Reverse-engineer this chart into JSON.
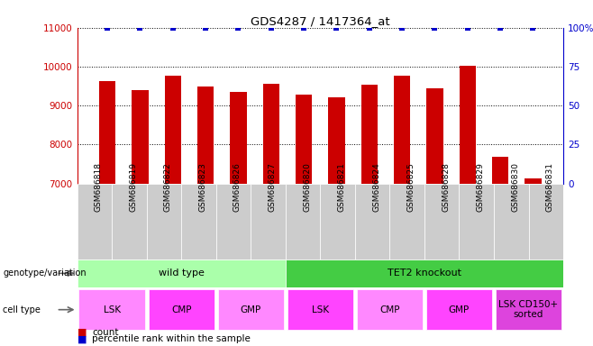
{
  "title": "GDS4287 / 1417364_at",
  "samples": [
    "GSM686818",
    "GSM686819",
    "GSM686822",
    "GSM686823",
    "GSM686826",
    "GSM686827",
    "GSM686820",
    "GSM686821",
    "GSM686824",
    "GSM686825",
    "GSM686828",
    "GSM686829",
    "GSM686830",
    "GSM686831"
  ],
  "counts": [
    9620,
    9390,
    9760,
    9490,
    9360,
    9560,
    9290,
    9200,
    9530,
    9760,
    9440,
    10020,
    7680,
    7130
  ],
  "percentile_ranks": [
    100,
    100,
    100,
    100,
    100,
    100,
    100,
    100,
    100,
    100,
    100,
    100,
    100,
    100
  ],
  "ylim_left": [
    7000,
    11000
  ],
  "ylim_right": [
    0,
    100
  ],
  "yticks_left": [
    7000,
    8000,
    9000,
    10000,
    11000
  ],
  "yticks_right": [
    0,
    25,
    50,
    75,
    100
  ],
  "ytick_labels_right": [
    "0",
    "25",
    "50",
    "75",
    "100%"
  ],
  "bar_color": "#cc0000",
  "dot_color": "#0000cc",
  "bar_width": 0.5,
  "genotype_groups": [
    {
      "label": "wild type",
      "start": 0,
      "end": 6,
      "color": "#aaffaa"
    },
    {
      "label": "TET2 knockout",
      "start": 6,
      "end": 14,
      "color": "#44cc44"
    }
  ],
  "cell_type_groups": [
    {
      "label": "LSK",
      "start": 0,
      "end": 2,
      "color": "#ff88ff"
    },
    {
      "label": "CMP",
      "start": 2,
      "end": 4,
      "color": "#ff44ff"
    },
    {
      "label": "GMP",
      "start": 4,
      "end": 6,
      "color": "#ff88ff"
    },
    {
      "label": "LSK",
      "start": 6,
      "end": 8,
      "color": "#ff44ff"
    },
    {
      "label": "CMP",
      "start": 8,
      "end": 10,
      "color": "#ff88ff"
    },
    {
      "label": "GMP",
      "start": 10,
      "end": 12,
      "color": "#ff44ff"
    },
    {
      "label": "LSK CD150+\nsorted",
      "start": 12,
      "end": 14,
      "color": "#dd44dd"
    }
  ],
  "left_yaxis_color": "#cc0000",
  "right_yaxis_color": "#0000cc",
  "xtick_bg_color": "#cccccc",
  "legend_count_color": "#cc0000",
  "legend_dot_color": "#0000cc"
}
